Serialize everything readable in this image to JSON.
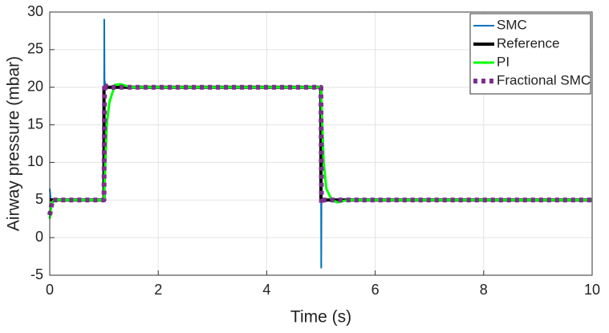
{
  "chart_data": {
    "type": "line",
    "xlabel": "Time (s)",
    "ylabel": "Airway pressure (mbar)",
    "xlim": [
      0,
      10
    ],
    "xticks": [
      0,
      2,
      4,
      6,
      8,
      10
    ],
    "ylim": [
      -5,
      30
    ],
    "yticks": [
      -5,
      0,
      5,
      10,
      15,
      20,
      25,
      30
    ],
    "grid": true,
    "legend": "upper right",
    "series": [
      {
        "name": "SMC",
        "color": "#0072bd",
        "x": [
          0,
          0.02,
          0.05,
          1,
          1.005,
          1.01,
          1.03,
          5,
          5.005,
          5.01,
          5.03,
          10
        ],
        "values": [
          6.5,
          5,
          5,
          5,
          29,
          21,
          20,
          20,
          -4,
          5.5,
          5,
          5
        ]
      },
      {
        "name": "Reference",
        "color": "#000000",
        "x": [
          0,
          1,
          1,
          5,
          5,
          10
        ],
        "values": [
          5,
          5,
          20,
          20,
          5,
          5
        ]
      },
      {
        "name": "PI",
        "color": "#00ff00",
        "x": [
          0,
          0.03,
          0.08,
          1,
          1.05,
          1.1,
          1.2,
          1.3,
          1.5,
          5,
          5.05,
          5.1,
          5.2,
          5.3,
          5.5,
          10
        ],
        "values": [
          2.5,
          4.5,
          5,
          5,
          15,
          18,
          20.3,
          20.4,
          20,
          20,
          10,
          6.5,
          5,
          4.7,
          5,
          5
        ]
      },
      {
        "name": "Fractional SMC",
        "color": "#7e2f8e",
        "x": [
          0,
          0.05,
          1,
          1.01,
          1.05,
          5,
          5.01,
          5.05,
          10
        ],
        "values": [
          3,
          5,
          5,
          20.5,
          20,
          20,
          4.5,
          5,
          5
        ]
      }
    ]
  }
}
